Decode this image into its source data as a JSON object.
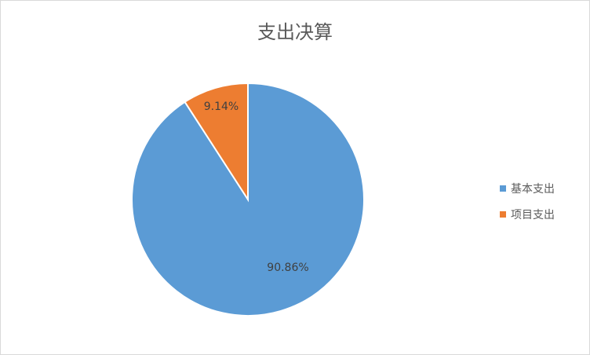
{
  "chart_data": {
    "type": "pie",
    "title": "支出决算",
    "categories": [
      "基本支出",
      "项目支出"
    ],
    "values": [
      90.86,
      9.14
    ],
    "data_labels": [
      "90.86%",
      "9.14%"
    ],
    "colors": [
      "#5B9BD5",
      "#ED7D31"
    ],
    "legend_position": "right",
    "start_angle": "12 o'clock, clockwise"
  }
}
